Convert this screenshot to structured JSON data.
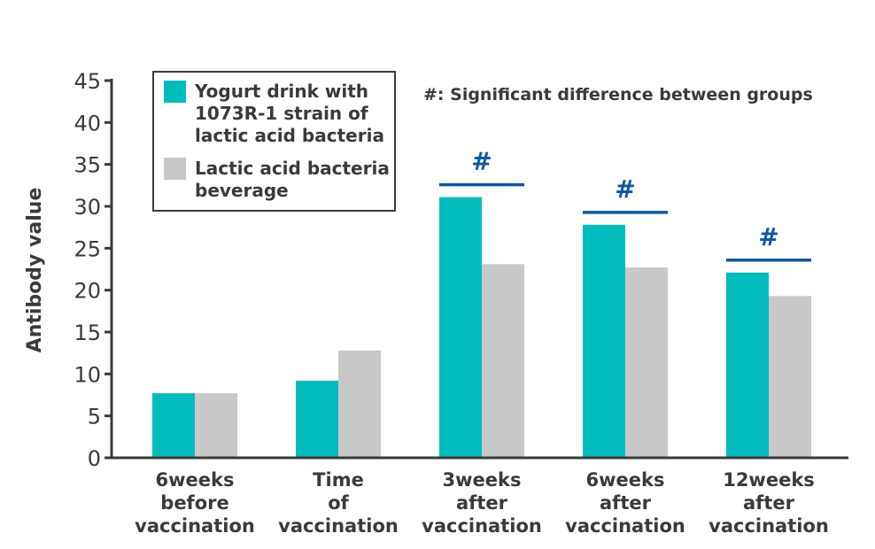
{
  "chart_data": {
    "type": "bar",
    "ylabel": "Antibody value",
    "xlabel": "",
    "ylim": [
      0,
      45
    ],
    "yticks": [
      0,
      5,
      10,
      15,
      20,
      25,
      30,
      35,
      40,
      45
    ],
    "categories": [
      [
        "6weeks",
        "before",
        "vaccination"
      ],
      [
        "Time",
        "of",
        "vaccination"
      ],
      [
        "3weeks",
        "after",
        "vaccination"
      ],
      [
        "6weeks",
        "after",
        "vaccination"
      ],
      [
        "12weeks",
        "after",
        "vaccination"
      ]
    ],
    "series": [
      {
        "name": [
          "Yogurt drink with",
          "1073R-1 strain of",
          "lactic acid bacteria"
        ],
        "color": "#00bcbc",
        "values": [
          7.7,
          9.2,
          31.1,
          27.8,
          22.1
        ]
      },
      {
        "name": [
          "Lactic acid bacteria",
          "beverage"
        ],
        "color": "#c8c8c8",
        "values": [
          7.7,
          12.8,
          23.1,
          22.7,
          19.3
        ]
      }
    ],
    "significance": {
      "note": "#: Significant difference between groups",
      "mark": "#",
      "color": "#0e56a0",
      "category_indices": [
        2,
        3,
        4
      ]
    },
    "legend_position": "top-left",
    "grid": false
  }
}
